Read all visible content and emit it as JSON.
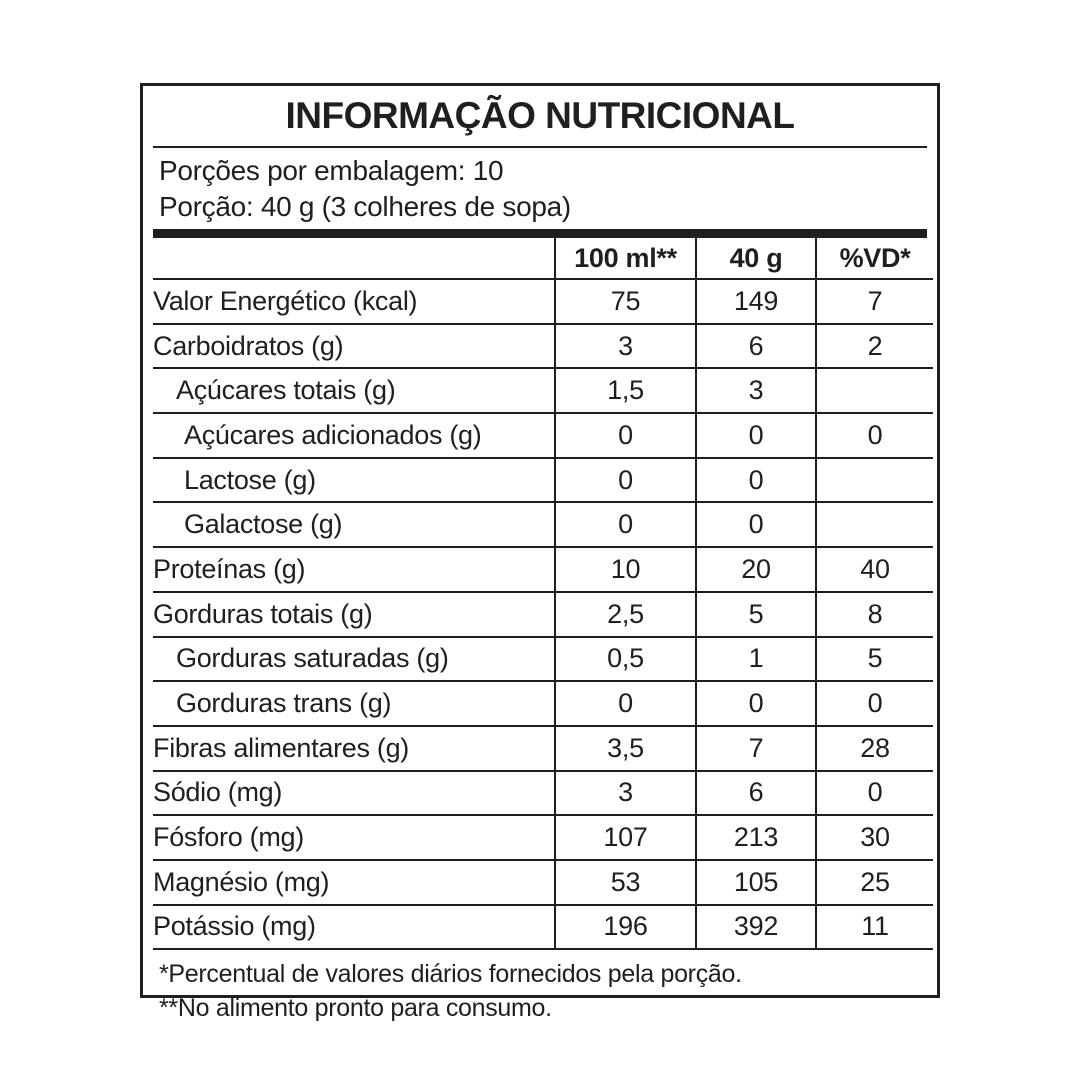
{
  "colors": {
    "ink": "#1f1f1d",
    "background": "#ffffff"
  },
  "label": {
    "title": "INFORMAÇÃO NUTRICIONAL",
    "servings_per_package": "Porções por embalagem: 10",
    "portion": "Porção: 40 g (3 colheres de sopa)"
  },
  "table": {
    "columns": [
      "100 ml**",
      "40 g",
      "%VD*"
    ],
    "rows": [
      {
        "label": "Valor Energético (kcal)",
        "indent": 0,
        "per_100ml": "75",
        "per_40g": "149",
        "pct_vd": "7"
      },
      {
        "label": "Carboidratos (g)",
        "indent": 0,
        "per_100ml": "3",
        "per_40g": "6",
        "pct_vd": "2"
      },
      {
        "label": "Açúcares totais (g)",
        "indent": 1,
        "per_100ml": "1,5",
        "per_40g": "3",
        "pct_vd": ""
      },
      {
        "label": "Açúcares adicionados (g)",
        "indent": 2,
        "per_100ml": "0",
        "per_40g": "0",
        "pct_vd": "0"
      },
      {
        "label": "Lactose (g)",
        "indent": 2,
        "per_100ml": "0",
        "per_40g": "0",
        "pct_vd": ""
      },
      {
        "label": "Galactose (g)",
        "indent": 2,
        "per_100ml": "0",
        "per_40g": "0",
        "pct_vd": ""
      },
      {
        "label": "Proteínas (g)",
        "indent": 0,
        "per_100ml": "10",
        "per_40g": "20",
        "pct_vd": "40"
      },
      {
        "label": "Gorduras totais (g)",
        "indent": 0,
        "per_100ml": "2,5",
        "per_40g": "5",
        "pct_vd": "8"
      },
      {
        "label": "Gorduras saturadas (g)",
        "indent": 1,
        "per_100ml": "0,5",
        "per_40g": "1",
        "pct_vd": "5"
      },
      {
        "label": "Gorduras trans (g)",
        "indent": 1,
        "per_100ml": "0",
        "per_40g": "0",
        "pct_vd": "0"
      },
      {
        "label": "Fibras alimentares (g)",
        "indent": 0,
        "per_100ml": "3,5",
        "per_40g": "7",
        "pct_vd": "28"
      },
      {
        "label": "Sódio (mg)",
        "indent": 0,
        "per_100ml": "3",
        "per_40g": "6",
        "pct_vd": "0"
      },
      {
        "label": "Fósforo (mg)",
        "indent": 0,
        "per_100ml": "107",
        "per_40g": "213",
        "pct_vd": "30"
      },
      {
        "label": "Magnésio (mg)",
        "indent": 0,
        "per_100ml": "53",
        "per_40g": "105",
        "pct_vd": "25"
      },
      {
        "label": "Potássio (mg)",
        "indent": 0,
        "per_100ml": "196",
        "per_40g": "392",
        "pct_vd": "11"
      }
    ]
  },
  "footnotes": [
    "*Percentual de valores diários fornecidos pela porção.",
    "**No alimento pronto para consumo."
  ]
}
